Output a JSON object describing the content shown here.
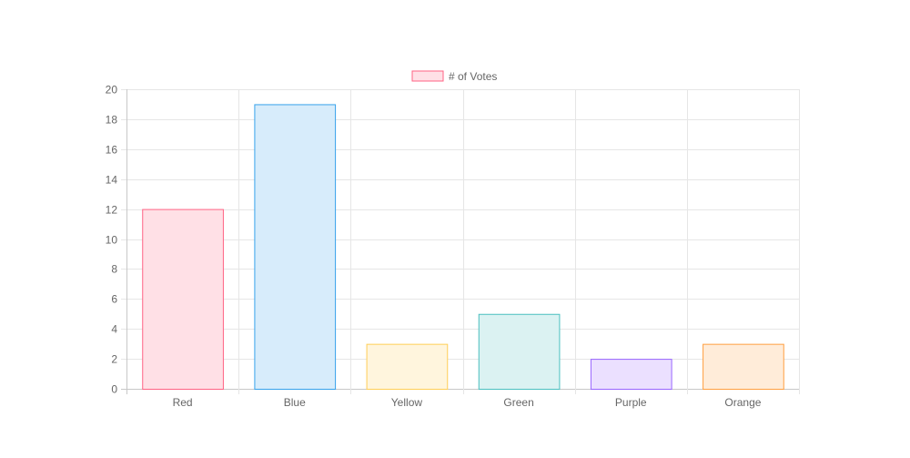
{
  "chart_data": {
    "type": "bar",
    "categories": [
      "Red",
      "Blue",
      "Yellow",
      "Green",
      "Purple",
      "Orange"
    ],
    "series": [
      {
        "name": "# of Votes",
        "values": [
          12,
          19,
          3,
          5,
          2,
          3
        ]
      }
    ],
    "title": "",
    "xlabel": "",
    "ylabel": "",
    "ylim": [
      0,
      20
    ],
    "yticks": [
      "0",
      "2",
      "4",
      "6",
      "8",
      "10",
      "12",
      "14",
      "16",
      "18",
      "20"
    ],
    "grid": true,
    "legend_position": "top-center",
    "bar_fill_colors": [
      "#ffe0e6",
      "#d7ecfb",
      "#fff5dd",
      "#dbf2f2",
      "#ebe0ff",
      "#ffecd9"
    ],
    "bar_border_colors": [
      "#ff6384",
      "#36a2eb",
      "#ffce56",
      "#4bc0c0",
      "#9966ff",
      "#ff9f40"
    ]
  }
}
